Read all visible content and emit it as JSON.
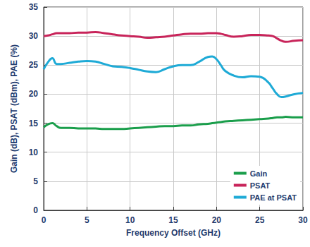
{
  "chart_data": {
    "type": "line",
    "x_label": "Frequency Offset (GHz)",
    "y_label": "Gain (dB), PSAT (dBm), PAE (%)",
    "x": [
      0,
      0.5,
      1,
      1.5,
      2,
      3,
      4,
      5,
      6,
      7,
      8,
      9,
      10,
      11,
      12,
      13,
      14,
      15,
      16,
      17,
      18,
      19,
      19.5,
      20,
      20.5,
      21,
      22,
      23,
      24,
      25,
      26,
      26.5,
      27,
      27.5,
      28,
      29,
      30
    ],
    "series": [
      {
        "name": "Gain",
        "color": "#1a9e4b",
        "values": [
          14.3,
          14.8,
          15.0,
          14.5,
          14.2,
          14.2,
          14.1,
          14.1,
          14.1,
          14.0,
          14.0,
          14.0,
          14.1,
          14.2,
          14.3,
          14.4,
          14.5,
          14.5,
          14.6,
          14.6,
          14.8,
          14.9,
          15.0,
          15.1,
          15.2,
          15.3,
          15.4,
          15.5,
          15.6,
          15.7,
          15.8,
          15.9,
          16.0,
          16.0,
          16.1,
          16.0,
          16.0
        ]
      },
      {
        "name": "PSAT",
        "color": "#c8245a",
        "values": [
          30.0,
          30.1,
          30.3,
          30.5,
          30.5,
          30.5,
          30.6,
          30.6,
          30.7,
          30.5,
          30.3,
          30.1,
          30.0,
          29.9,
          29.7,
          29.8,
          29.9,
          30.1,
          30.3,
          30.4,
          30.4,
          30.5,
          30.5,
          30.5,
          30.4,
          30.2,
          29.9,
          30.0,
          30.2,
          30.2,
          30.1,
          30.0,
          29.6,
          29.2,
          29.0,
          29.2,
          29.3
        ]
      },
      {
        "name": "PAE at PSAT",
        "color": "#1eaad6",
        "values": [
          24.3,
          25.5,
          26.2,
          25.2,
          25.2,
          25.4,
          25.6,
          25.7,
          25.6,
          25.2,
          24.8,
          24.7,
          24.5,
          24.2,
          23.9,
          23.8,
          24.3,
          24.8,
          25.0,
          25.0,
          25.6,
          26.4,
          26.5,
          26.0,
          25.0,
          24.0,
          23.2,
          22.9,
          23.1,
          23.0,
          22.0,
          21.0,
          20.0,
          19.5,
          19.6,
          20.0,
          20.2
        ]
      }
    ],
    "xlim": [
      0,
      30
    ],
    "xticks": [
      0,
      5,
      10,
      15,
      20,
      25,
      30
    ],
    "ylim": [
      0,
      35
    ],
    "yticks": [
      0,
      5,
      10,
      15,
      20,
      25,
      30,
      35
    ],
    "grid": true,
    "legend": "lower right"
  }
}
